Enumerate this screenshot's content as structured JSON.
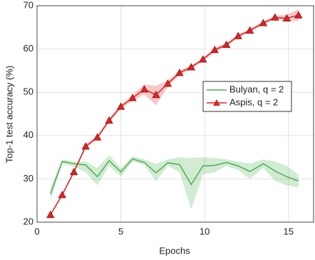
{
  "chart_data": {
    "type": "line",
    "x_label": "Epochs",
    "y_label": "Top-1 test accuracy (%)",
    "x": [
      0.8,
      1.5,
      2.2,
      2.9,
      3.6,
      4.3,
      5.0,
      5.7,
      6.4,
      7.1,
      7.8,
      8.5,
      9.2,
      9.9,
      10.6,
      11.3,
      12.0,
      12.7,
      13.5,
      14.2,
      14.9,
      15.6
    ],
    "series": [
      {
        "name": "Bulyan, q = 2",
        "color": "#4caf50",
        "marker": "none",
        "values": [
          26.5,
          34,
          33.5,
          33.2,
          30.5,
          34.2,
          31.6,
          34.6,
          33.8,
          31.4,
          33.7,
          33.3,
          28.7,
          33,
          33.1,
          33.8,
          33,
          31.7,
          33.5,
          31.8,
          30.5,
          29.5
        ],
        "lower": [
          25,
          33.5,
          32.8,
          31.5,
          28.5,
          33,
          30.5,
          34,
          33.2,
          29.5,
          33,
          31.5,
          23,
          31,
          31.5,
          33,
          32,
          30,
          32.5,
          29.5,
          28.5,
          28
        ],
        "upper": [
          28,
          34.5,
          34,
          34,
          32.5,
          35.5,
          32.5,
          35.2,
          34.5,
          33.5,
          34.5,
          35,
          34.8,
          35,
          34.8,
          34.5,
          34,
          33.5,
          34.5,
          34,
          33,
          31
        ]
      },
      {
        "name": "Aspis, q = 2",
        "color": "#d62728",
        "marker": "triangle",
        "values": [
          21.7,
          26.3,
          31.6,
          37.5,
          39.6,
          43.5,
          46.7,
          48.7,
          50.7,
          49.4,
          52,
          54.5,
          55.8,
          57.6,
          59.8,
          61,
          63,
          64.3,
          66,
          67.3,
          67.1,
          67.8
        ],
        "lower": [
          21.5,
          26,
          31.2,
          37,
          39.2,
          43,
          46.2,
          48,
          49.5,
          47,
          51.2,
          54,
          55.3,
          57.2,
          59.3,
          60.6,
          62.6,
          63.9,
          65.6,
          66.9,
          66.3,
          66.5
        ],
        "upper": [
          22,
          26.7,
          32,
          38,
          40,
          44,
          47.2,
          49.4,
          51.8,
          51.5,
          52.8,
          55,
          56.3,
          58,
          60.3,
          61.4,
          63.4,
          64.7,
          66.4,
          67.7,
          67.9,
          69.2
        ]
      }
    ],
    "xlim": [
      0,
      16.5
    ],
    "xticks": [
      0,
      5,
      10,
      15
    ],
    "ylim": [
      20,
      70
    ],
    "yticks": [
      20,
      30,
      40,
      50,
      60,
      70
    ],
    "grid": true,
    "legend": "right"
  }
}
